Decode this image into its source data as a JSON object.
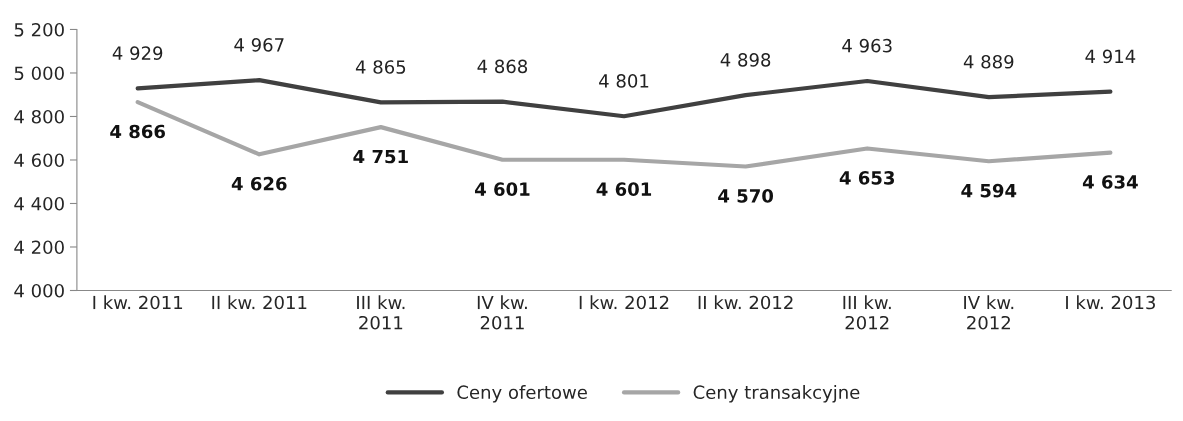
{
  "chart_data": {
    "type": "line",
    "categories": [
      "I kw. 2011",
      "II kw. 2011",
      "III kw.\n2011",
      "IV kw.\n2011",
      "I kw. 2012",
      "II kw. 2012",
      "III kw.\n2012",
      "IV kw.\n2012",
      "I kw. 2013"
    ],
    "series": [
      {
        "name": "Ceny ofertowe",
        "color": "#404040",
        "values": [
          4929,
          4967,
          4865,
          4868,
          4801,
          4898,
          4963,
          4889,
          4914
        ],
        "value_labels": [
          "4 929",
          "4 967",
          "4 865",
          "4 868",
          "4 801",
          "4 898",
          "4 963",
          "4 889",
          "4 914"
        ]
      },
      {
        "name": "Ceny transakcyjne",
        "color": "#a6a6a6",
        "values": [
          4866,
          4626,
          4751,
          4601,
          4601,
          4570,
          4653,
          4594,
          4634
        ],
        "value_labels": [
          "4 866",
          "4 626",
          "4 751",
          "4 601",
          "4 601",
          "4 570",
          "4 653",
          "4 594",
          "4 634"
        ]
      }
    ],
    "ylim": [
      4000,
      5200
    ],
    "yticks": [
      {
        "value": 4000,
        "label": "4 000"
      },
      {
        "value": 4200,
        "label": "4 200"
      },
      {
        "value": 4400,
        "label": "4 400"
      },
      {
        "value": 4600,
        "label": "4 600"
      },
      {
        "value": 4800,
        "label": "4 800"
      },
      {
        "value": 5000,
        "label": "5 000"
      },
      {
        "value": 5200,
        "label": "5 200"
      }
    ],
    "grid": false,
    "legend": "bottom",
    "marker": "none",
    "line_style": "solid"
  }
}
